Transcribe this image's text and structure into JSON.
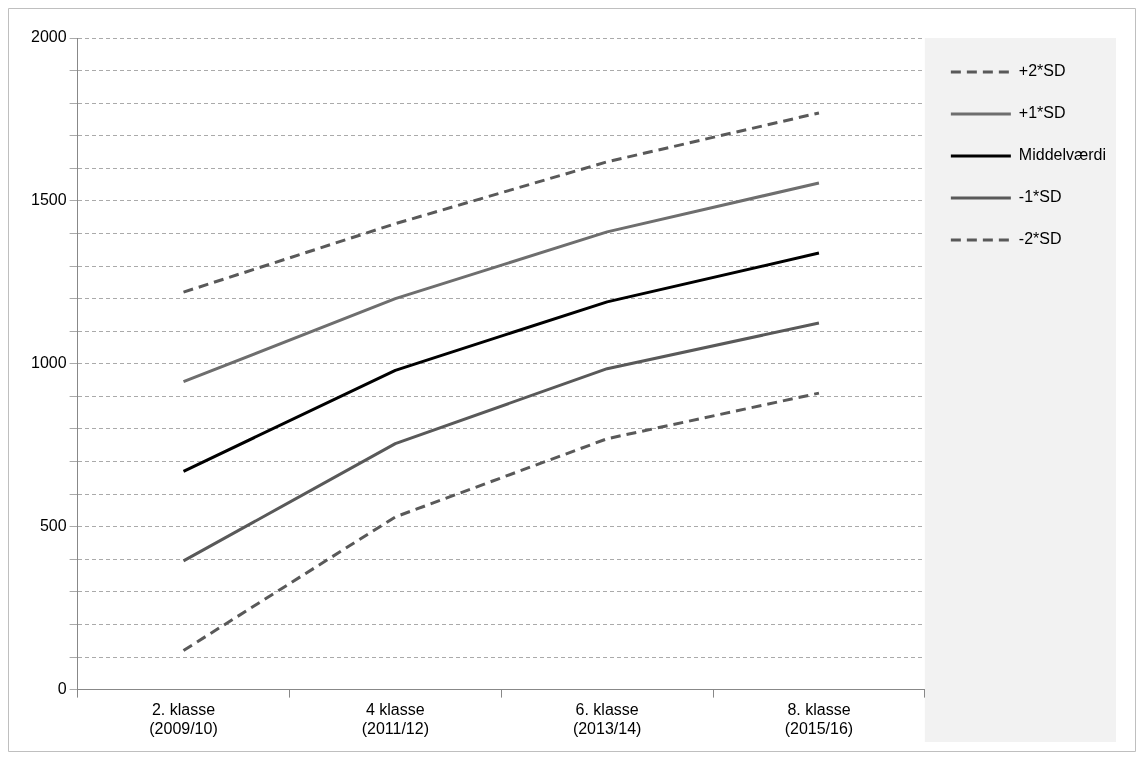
{
  "chart_data": {
    "type": "line",
    "categories": [
      "2. klasse\n(2009/10)",
      "4 klasse\n(2011/12)",
      "6. klasse\n(2013/14)",
      "8. klasse\n(2015/16)"
    ],
    "ylim": [
      0,
      2000
    ],
    "yticks": [
      0,
      {
        "value": 100,
        "label": null
      },
      {
        "value": 200,
        "label": null
      },
      {
        "value": 300,
        "label": null
      },
      {
        "value": 400,
        "label": null
      },
      500,
      {
        "value": 600,
        "label": null
      },
      {
        "value": 700,
        "label": null
      },
      {
        "value": 800,
        "label": null
      },
      {
        "value": 900,
        "label": null
      },
      1000,
      {
        "value": 1100,
        "label": null
      },
      {
        "value": 1200,
        "label": null
      },
      {
        "value": 1300,
        "label": null
      },
      {
        "value": 1400,
        "label": null
      },
      1500,
      {
        "value": 1600,
        "label": null
      },
      {
        "value": 1700,
        "label": null
      },
      {
        "value": 1800,
        "label": null
      },
      {
        "value": 1900,
        "label": null
      },
      2000
    ],
    "grid": "y",
    "legend": "right",
    "marker": "none",
    "series": [
      {
        "name": "+2*SD",
        "color": "#595959",
        "line_style": "dashed",
        "values": [
          1220,
          1430,
          1620,
          1770
        ]
      },
      {
        "name": "+1*SD",
        "color": "#6e6e6e",
        "line_style": "solid",
        "values": [
          945,
          1200,
          1405,
          1555
        ]
      },
      {
        "name": "Middelværdi",
        "color": "#000000",
        "line_style": "solid",
        "values": [
          670,
          980,
          1190,
          1340
        ]
      },
      {
        "name": "-1*SD",
        "color": "#595959",
        "line_style": "solid",
        "values": [
          395,
          755,
          985,
          1125
        ]
      },
      {
        "name": "-2*SD",
        "color": "#595959",
        "line_style": "dashed",
        "values": [
          120,
          530,
          770,
          910
        ]
      }
    ]
  }
}
